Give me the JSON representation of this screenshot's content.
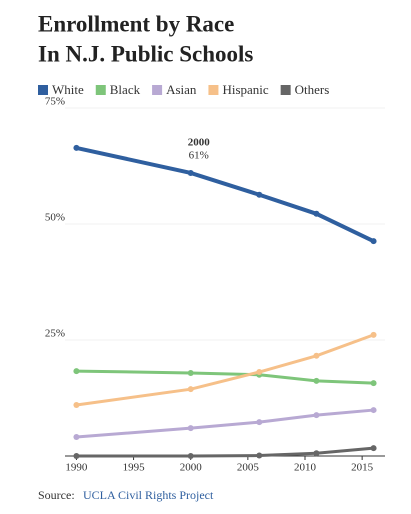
{
  "chart_data": {
    "type": "line",
    "title": "Enrollment by Race",
    "subtitle": "In N.J. Public Schools",
    "x": [
      1990,
      2000,
      2006,
      2011,
      2016
    ],
    "xlim": [
      1989,
      2017
    ],
    "xticks": [
      1990,
      1995,
      2000,
      2005,
      2010,
      2015
    ],
    "ylim": [
      0,
      75
    ],
    "yticks": [
      {
        "value": 25,
        "label": "25%"
      },
      {
        "value": 50,
        "label": "50%"
      },
      {
        "value": 75,
        "label": "75%"
      }
    ],
    "grid": true,
    "legend": "top",
    "series": [
      {
        "name": "White",
        "color": "#2f5f9f",
        "values": [
          66.4,
          61,
          56.3,
          52.2,
          46.3
        ]
      },
      {
        "name": "Black",
        "color": "#7ec57a",
        "values": [
          18.3,
          17.9,
          17.5,
          16.2,
          15.7
        ]
      },
      {
        "name": "Asian",
        "color": "#b8a9d3",
        "values": [
          4.1,
          6.0,
          7.3,
          8.8,
          9.9
        ]
      },
      {
        "name": "Hispanic",
        "color": "#f6c089",
        "values": [
          11.0,
          14.4,
          18.1,
          21.6,
          26.1
        ]
      },
      {
        "name": "Others",
        "color": "#666666",
        "values": [
          0,
          0,
          0.1,
          0.6,
          1.7
        ]
      }
    ],
    "annotation": {
      "title": "2000",
      "text": "61%"
    },
    "source_label": "Source:",
    "source": "UCLA Civil Rights Project"
  }
}
